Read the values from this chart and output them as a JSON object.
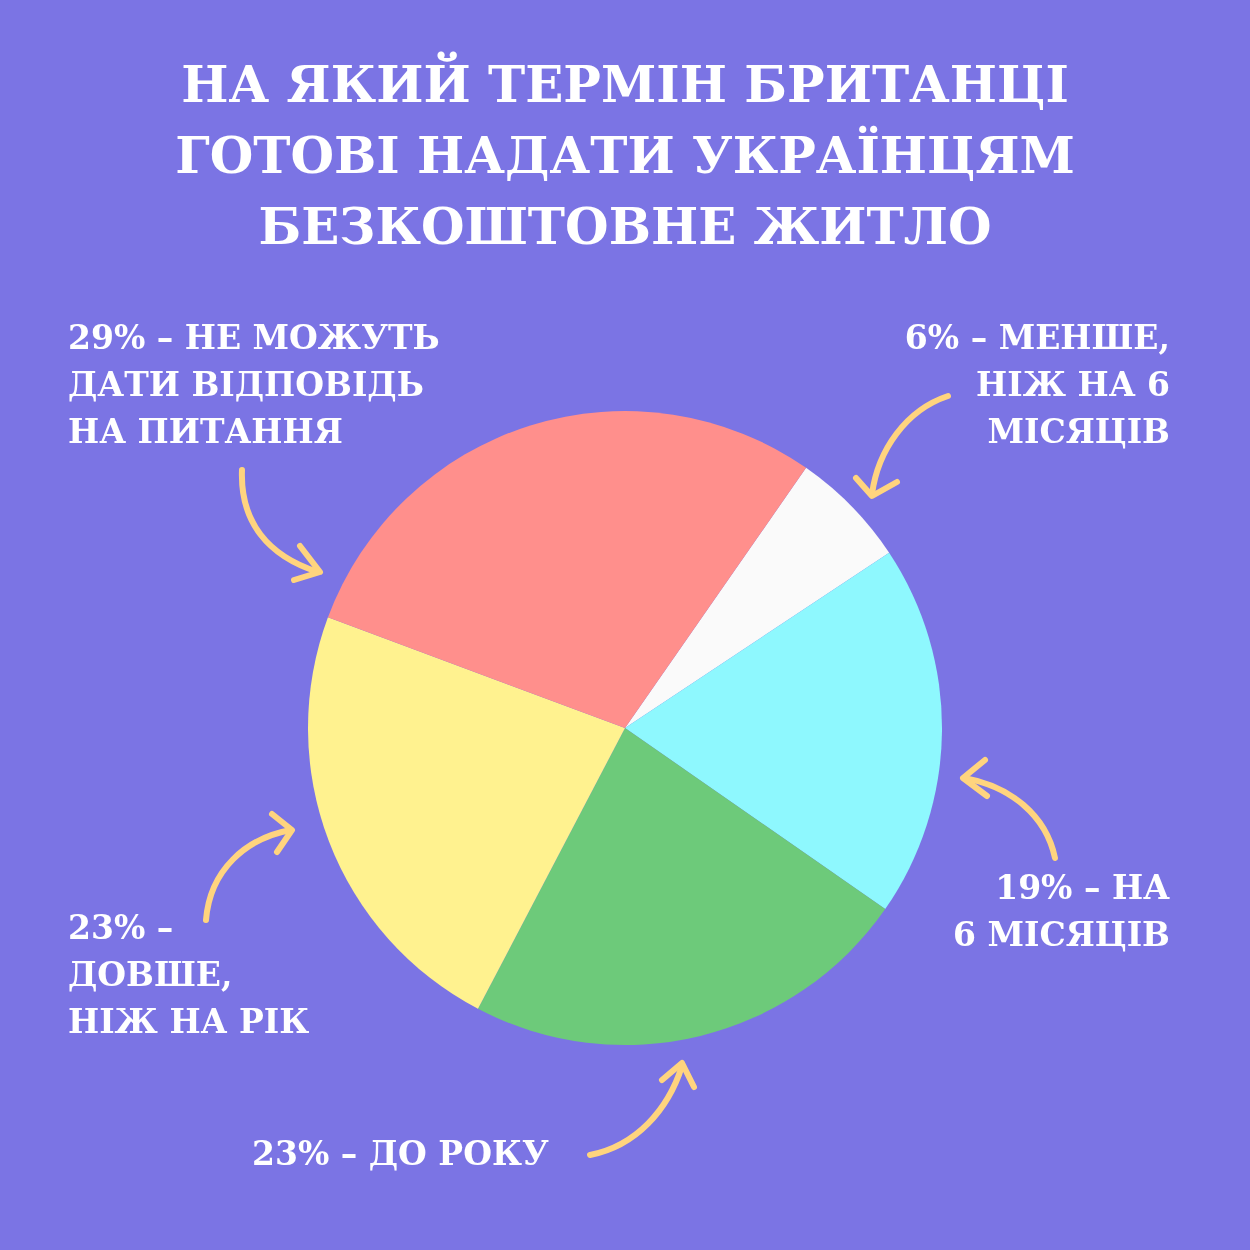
{
  "chart_data": {
    "type": "pie",
    "title": "НА ЯКИЙ ТЕРМІН БРИТАНЦІ ГОТОВІ НАДАТИ УКРАЇНЦЯМ БЕЗКОШТОВНЕ ЖИТЛО",
    "categories": [
      "6% – МЕНШЕ, НІЖ НА 6 МІСЯЦІВ",
      "19% – НА 6 МІСЯЦІВ",
      "23% – ДО РОКУ",
      "23% – ДОВШЕ, НІЖ НА РІК",
      "29% – НЕ МОЖУТЬ ДАТИ ВІДПОВІДЬ НА ПИТАННЯ"
    ],
    "values": [
      6,
      19,
      23,
      23,
      29
    ],
    "colors": [
      "#fafafa",
      "#8ef8fe",
      "#6dca7a",
      "#fff28f",
      "#ff8f8c"
    ]
  }
}
